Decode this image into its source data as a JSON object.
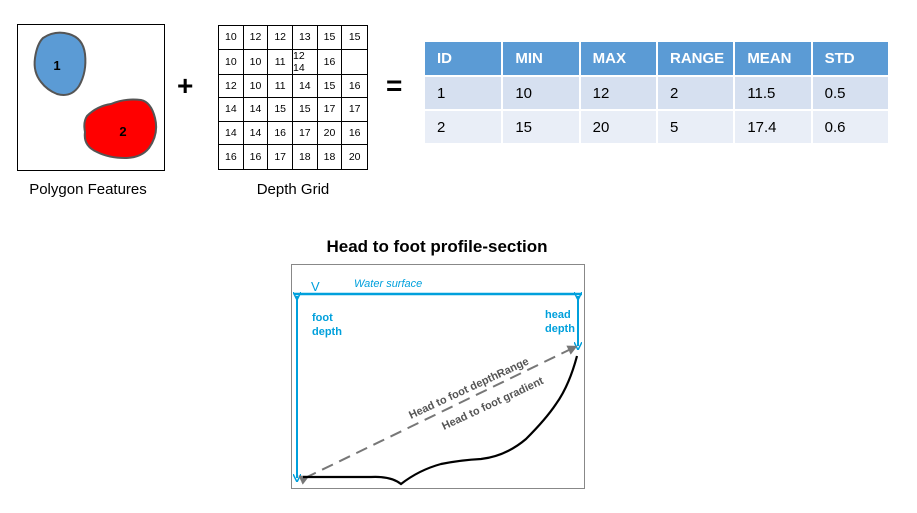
{
  "polygons": {
    "caption": "Polygon Features",
    "shapes": [
      {
        "label": "1",
        "color": "#5b9bd5"
      },
      {
        "label": "2",
        "color": "#ff0000"
      }
    ]
  },
  "operators": {
    "plus": "+",
    "equals": "="
  },
  "depth_grid": {
    "caption": "Depth Grid",
    "rows": [
      [
        "10",
        "12",
        "12",
        "13",
        "15",
        "15"
      ],
      [
        "10",
        "10",
        "11",
        "12 14",
        "16",
        ""
      ],
      [
        "12",
        "10",
        "11",
        "14",
        "15",
        "16"
      ],
      [
        "14",
        "14",
        "15",
        "15",
        "17",
        "17"
      ],
      [
        "14",
        "14",
        "16",
        "17",
        "20",
        "16"
      ],
      [
        "16",
        "16",
        "17",
        "18",
        "18",
        "20"
      ]
    ]
  },
  "stats_table": {
    "headers": [
      "ID",
      "MIN",
      "MAX",
      "RANGE",
      "MEAN",
      "STD"
    ],
    "rows": [
      [
        "1",
        "10",
        "12",
        "2",
        "11.5",
        "0.5"
      ],
      [
        "2",
        "15",
        "20",
        "5",
        "17.4",
        "0.6"
      ]
    ],
    "header_color": "#5b9bd5"
  },
  "profile": {
    "title": "Head to foot profile-section",
    "water_surface": "Water surface",
    "water_marker": "V",
    "foot_depth": [
      "foot",
      "depth"
    ],
    "head_depth": [
      "head",
      "depth"
    ],
    "range_label": "Head to foot  depthRange",
    "gradient_label": "Head to foot  gradient",
    "accent_color": "#00a0dc"
  }
}
